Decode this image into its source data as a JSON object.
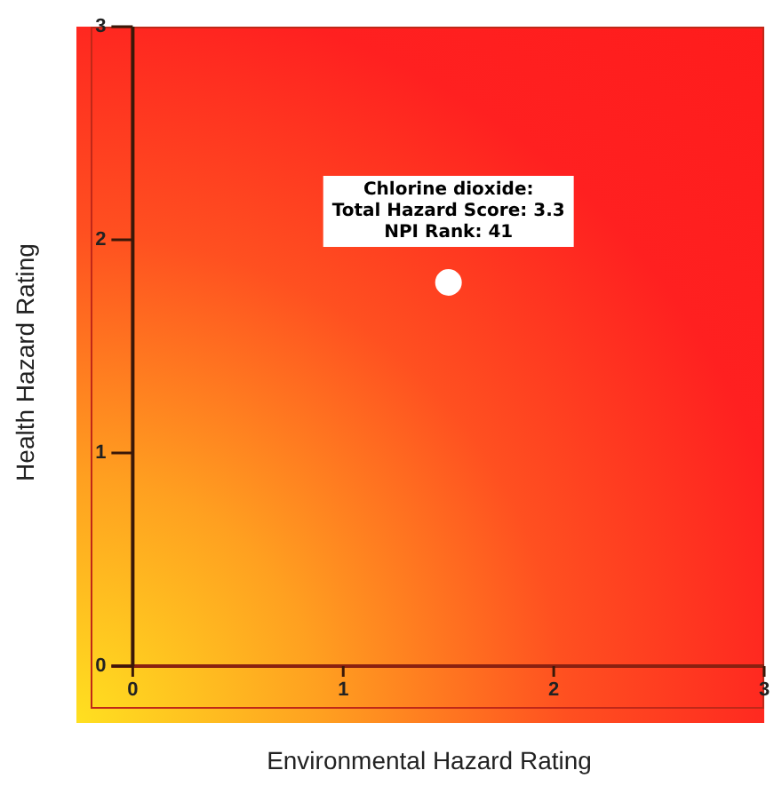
{
  "chart_data": {
    "type": "scatter",
    "xlabel": "Environmental Hazard Rating",
    "ylabel": "Health Hazard Rating",
    "x": [
      1.5
    ],
    "values": [
      1.8
    ],
    "color": "#ffffff",
    "marker": "circle",
    "ref_lines": [
      {
        "axis": "y",
        "value": 0,
        "color": "#8a2010"
      }
    ],
    "xlim": [
      -0.2,
      3
    ],
    "ylim": [
      -0.2,
      3
    ],
    "xticks": [
      0,
      1,
      2,
      3
    ],
    "yticks": [
      0,
      1,
      2,
      3
    ],
    "grid": false,
    "legend": false,
    "annotations": [
      {
        "text": "Chlorine dioxide:\nTotal Hazard Score: 3.3\nNPI Rank: 41",
        "x": 1.5,
        "y": 1.8
      }
    ]
  }
}
